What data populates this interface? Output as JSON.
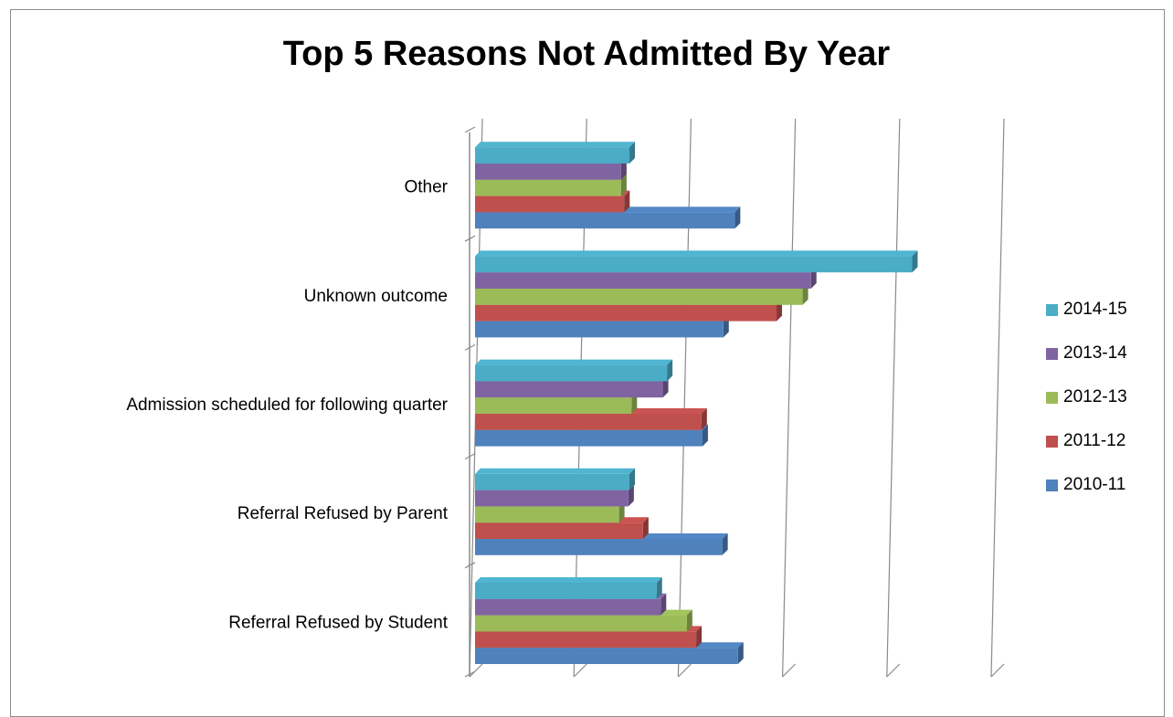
{
  "chart_data": {
    "type": "bar",
    "orientation": "horizontal",
    "title": "Top 5 Reasons Not Admitted By Year",
    "categories": [
      "Referral Refused by Student",
      "Referral Refused by Parent",
      "Admission scheduled for following quarter",
      "Unknown outcome",
      "Other"
    ],
    "series": [
      {
        "name": "2010-11",
        "color": "#4f81bd",
        "values": [
          25.2,
          23.7,
          21.8,
          23.8,
          24.9
        ]
      },
      {
        "name": "2011-12",
        "color": "#c0504d",
        "values": [
          21.2,
          16.1,
          21.7,
          28.9,
          14.3
        ]
      },
      {
        "name": "2012-13",
        "color": "#9bbb59",
        "values": [
          20.3,
          13.8,
          15.0,
          31.4,
          14.0
        ]
      },
      {
        "name": "2013-14",
        "color": "#8064a2",
        "values": [
          17.8,
          14.7,
          18.0,
          32.2,
          14.0
        ]
      },
      {
        "name": "2014-15",
        "color": "#4bacc6",
        "values": [
          17.4,
          14.8,
          18.4,
          41.9,
          14.8
        ]
      }
    ],
    "xlim": [
      0,
      50
    ],
    "grid": true,
    "axis_tick_labels_shown": false,
    "legend_position": "right"
  }
}
